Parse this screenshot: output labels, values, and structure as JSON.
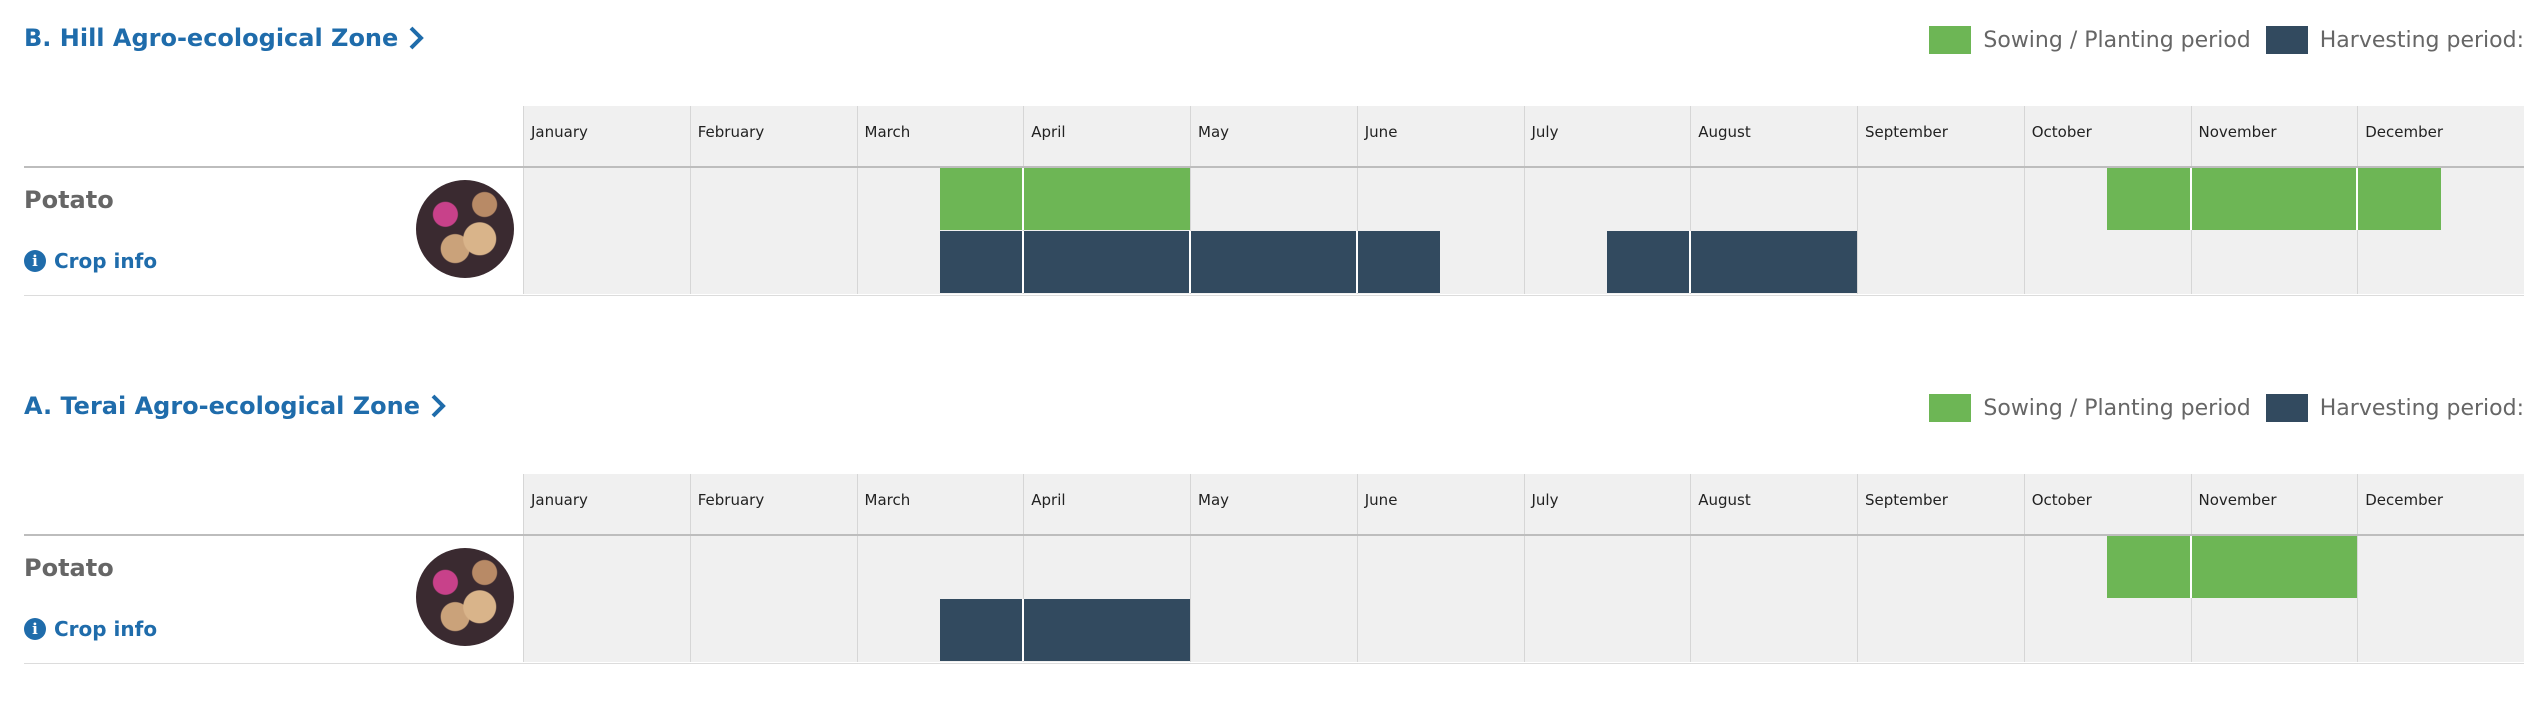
{
  "legend": {
    "sowing_label": "Sowing / Planting period",
    "harvesting_label": "Harvesting period:",
    "sowing_color": "#6db655",
    "harvesting_color": "#324a5f"
  },
  "months": [
    "January",
    "February",
    "March",
    "April",
    "May",
    "June",
    "July",
    "August",
    "September",
    "October",
    "November",
    "December"
  ],
  "zones": [
    {
      "title": "B. Hill Agro-ecological Zone",
      "crop": "Potato",
      "crop_info_label": "Crop info",
      "sowing_segments": [
        [
          2.5,
          4.0
        ],
        [
          9.5,
          11.5
        ]
      ],
      "harvest_segments": [
        [
          2.5,
          5.5
        ],
        [
          6.5,
          8.0
        ]
      ]
    },
    {
      "title": "A. Terai Agro-ecological Zone",
      "crop": "Potato",
      "crop_info_label": "Crop info",
      "sowing_segments": [
        [
          9.5,
          11.0
        ]
      ],
      "harvest_segments": [
        [
          2.5,
          4.0
        ]
      ]
    }
  ]
}
